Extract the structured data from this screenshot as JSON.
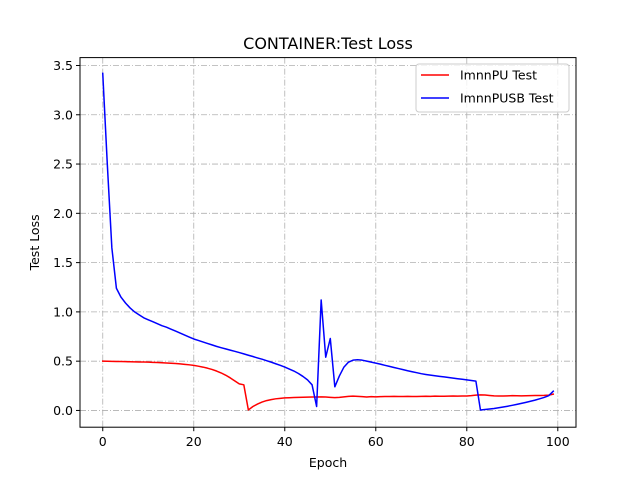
{
  "chart_data": {
    "type": "line",
    "title": "CONTAINER:Test Loss",
    "xlabel": "Epoch",
    "ylabel": "Test Loss",
    "xlim": [
      -5,
      104
    ],
    "ylim": [
      -0.17,
      3.58
    ],
    "xticks": [
      0,
      20,
      40,
      60,
      80,
      100
    ],
    "yticks": [
      0.0,
      0.5,
      1.0,
      1.5,
      2.0,
      2.5,
      3.0,
      3.5
    ],
    "grid": true,
    "legend_position": "upper-right",
    "series": [
      {
        "name": "ImnnPU Test",
        "color": "#ff0000",
        "x": [
          0,
          1,
          2,
          3,
          4,
          5,
          6,
          7,
          8,
          9,
          10,
          11,
          12,
          13,
          14,
          15,
          16,
          17,
          18,
          19,
          20,
          21,
          22,
          23,
          24,
          25,
          26,
          27,
          28,
          29,
          30,
          31,
          32,
          33,
          34,
          35,
          36,
          37,
          38,
          39,
          40,
          41,
          42,
          43,
          44,
          45,
          46,
          47,
          48,
          49,
          50,
          51,
          52,
          53,
          54,
          55,
          56,
          57,
          58,
          59,
          60,
          61,
          62,
          63,
          64,
          65,
          66,
          67,
          68,
          69,
          70,
          71,
          72,
          73,
          74,
          75,
          76,
          77,
          78,
          79,
          80,
          81,
          82,
          83,
          84,
          85,
          86,
          87,
          88,
          89,
          90,
          91,
          92,
          93,
          94,
          95,
          96,
          97,
          98,
          99
        ],
        "y": [
          0.5,
          0.499,
          0.498,
          0.497,
          0.496,
          0.495,
          0.494,
          0.493,
          0.492,
          0.491,
          0.49,
          0.488,
          0.486,
          0.484,
          0.482,
          0.479,
          0.476,
          0.472,
          0.468,
          0.463,
          0.457,
          0.449,
          0.44,
          0.429,
          0.416,
          0.4,
          0.381,
          0.358,
          0.331,
          0.3,
          0.27,
          0.26,
          0.005,
          0.04,
          0.065,
          0.085,
          0.1,
          0.11,
          0.118,
          0.123,
          0.127,
          0.129,
          0.131,
          0.133,
          0.134,
          0.135,
          0.136,
          0.137,
          0.138,
          0.136,
          0.133,
          0.13,
          0.133,
          0.138,
          0.143,
          0.145,
          0.143,
          0.14,
          0.137,
          0.14,
          0.138,
          0.14,
          0.142,
          0.141,
          0.143,
          0.141,
          0.142,
          0.143,
          0.142,
          0.142,
          0.143,
          0.144,
          0.143,
          0.145,
          0.144,
          0.144,
          0.145,
          0.146,
          0.145,
          0.146,
          0.147,
          0.15,
          0.155,
          0.158,
          0.157,
          0.152,
          0.148,
          0.146,
          0.147,
          0.148,
          0.15,
          0.149,
          0.148,
          0.149,
          0.15,
          0.151,
          0.152,
          0.153,
          0.155,
          0.165
        ]
      },
      {
        "name": "ImnnPUSB Test",
        "color": "#0000ff",
        "x": [
          0,
          1,
          2,
          3,
          4,
          5,
          6,
          7,
          8,
          9,
          10,
          11,
          12,
          13,
          14,
          15,
          16,
          17,
          18,
          19,
          20,
          21,
          22,
          23,
          24,
          25,
          26,
          27,
          28,
          29,
          30,
          31,
          32,
          33,
          34,
          35,
          36,
          37,
          38,
          39,
          40,
          41,
          42,
          43,
          44,
          45,
          46,
          47,
          48,
          49,
          50,
          51,
          52,
          53,
          54,
          55,
          56,
          57,
          58,
          59,
          60,
          61,
          62,
          63,
          64,
          65,
          66,
          67,
          68,
          69,
          70,
          71,
          72,
          73,
          74,
          75,
          76,
          77,
          78,
          79,
          80,
          81,
          82,
          83,
          84,
          85,
          86,
          87,
          88,
          89,
          90,
          91,
          92,
          93,
          94,
          95,
          96,
          97,
          98,
          99
        ],
        "y": [
          3.42,
          2.5,
          1.65,
          1.24,
          1.15,
          1.09,
          1.04,
          1.0,
          0.97,
          0.94,
          0.92,
          0.9,
          0.88,
          0.86,
          0.845,
          0.825,
          0.805,
          0.785,
          0.765,
          0.745,
          0.725,
          0.71,
          0.695,
          0.68,
          0.665,
          0.65,
          0.637,
          0.625,
          0.612,
          0.6,
          0.587,
          0.574,
          0.56,
          0.547,
          0.533,
          0.52,
          0.505,
          0.49,
          0.474,
          0.458,
          0.44,
          0.42,
          0.4,
          0.375,
          0.345,
          0.31,
          0.26,
          0.04,
          1.12,
          0.54,
          0.73,
          0.24,
          0.35,
          0.44,
          0.49,
          0.51,
          0.515,
          0.51,
          0.5,
          0.49,
          0.48,
          0.47,
          0.458,
          0.447,
          0.436,
          0.425,
          0.414,
          0.403,
          0.393,
          0.383,
          0.373,
          0.365,
          0.358,
          0.352,
          0.346,
          0.34,
          0.334,
          0.328,
          0.322,
          0.316,
          0.31,
          0.304,
          0.298,
          0.005,
          0.01,
          0.015,
          0.02,
          0.027,
          0.035,
          0.043,
          0.052,
          0.062,
          0.072,
          0.082,
          0.093,
          0.105,
          0.118,
          0.132,
          0.15,
          0.195
        ]
      }
    ]
  },
  "legend": {
    "items": [
      {
        "label": "ImnnPU Test",
        "color": "#ff0000"
      },
      {
        "label": "ImnnPUSB Test",
        "color": "#0000ff"
      }
    ]
  },
  "x_tick_labels": [
    "0",
    "20",
    "40",
    "60",
    "80",
    "100"
  ],
  "y_tick_labels": [
    "0.0",
    "0.5",
    "1.0",
    "1.5",
    "2.0",
    "2.5",
    "3.0",
    "3.5"
  ]
}
